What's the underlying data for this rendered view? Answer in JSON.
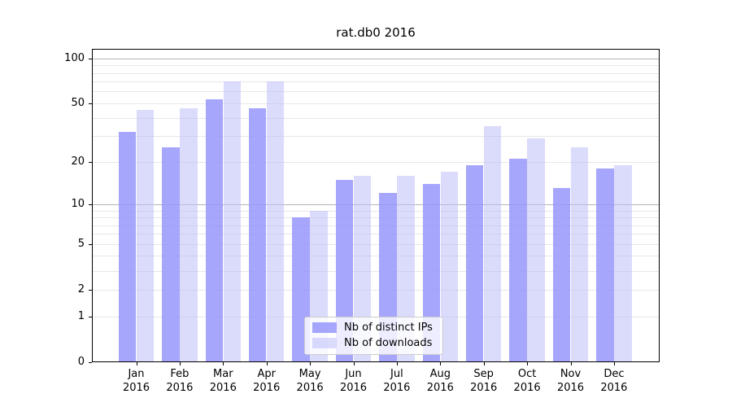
{
  "title": "rat.db0 2016",
  "legend": {
    "entries": [
      {
        "label": "Nb of distinct IPs",
        "color": "rgba(151,151,252,0.85)"
      },
      {
        "label": "Nb of downloads",
        "color": "rgba(190,190,250,0.55)"
      }
    ]
  },
  "colors": {
    "bar_ips": "rgba(151,151,252,0.85)",
    "bar_downloads": "rgba(190,190,250,0.55)",
    "grid_minor": "#e7e7e7",
    "grid_major": "#b5b5b5",
    "spine": "#000000"
  },
  "chart_data": {
    "type": "bar",
    "categories": [
      "Jan",
      "Feb",
      "Mar",
      "Apr",
      "May",
      "Jun",
      "Jul",
      "Aug",
      "Sep",
      "Oct",
      "Nov",
      "Dec"
    ],
    "year": "2016",
    "series": [
      {
        "name": "Nb of distinct IPs",
        "values": [
          32,
          25,
          53,
          46,
          8,
          15,
          12,
          14,
          19,
          21,
          13,
          18
        ]
      },
      {
        "name": "Nb of downloads",
        "values": [
          45,
          46,
          70,
          70,
          9,
          16,
          16,
          17,
          35,
          29,
          25,
          19
        ]
      }
    ],
    "title": "rat.db0 2016",
    "xlabel": "",
    "ylabel": "",
    "yscale": "log1p",
    "ylim": [
      0,
      115
    ],
    "y_ticks": [
      100,
      50,
      20,
      10,
      5,
      2,
      1,
      0
    ],
    "grid_minor_values": [
      1,
      2,
      3,
      4,
      5,
      6,
      7,
      8,
      9,
      20,
      30,
      40,
      50,
      60,
      70,
      80,
      90
    ],
    "grid_major_values": [
      10,
      100
    ],
    "grid": "horizontal",
    "legend_position": "lower center"
  }
}
